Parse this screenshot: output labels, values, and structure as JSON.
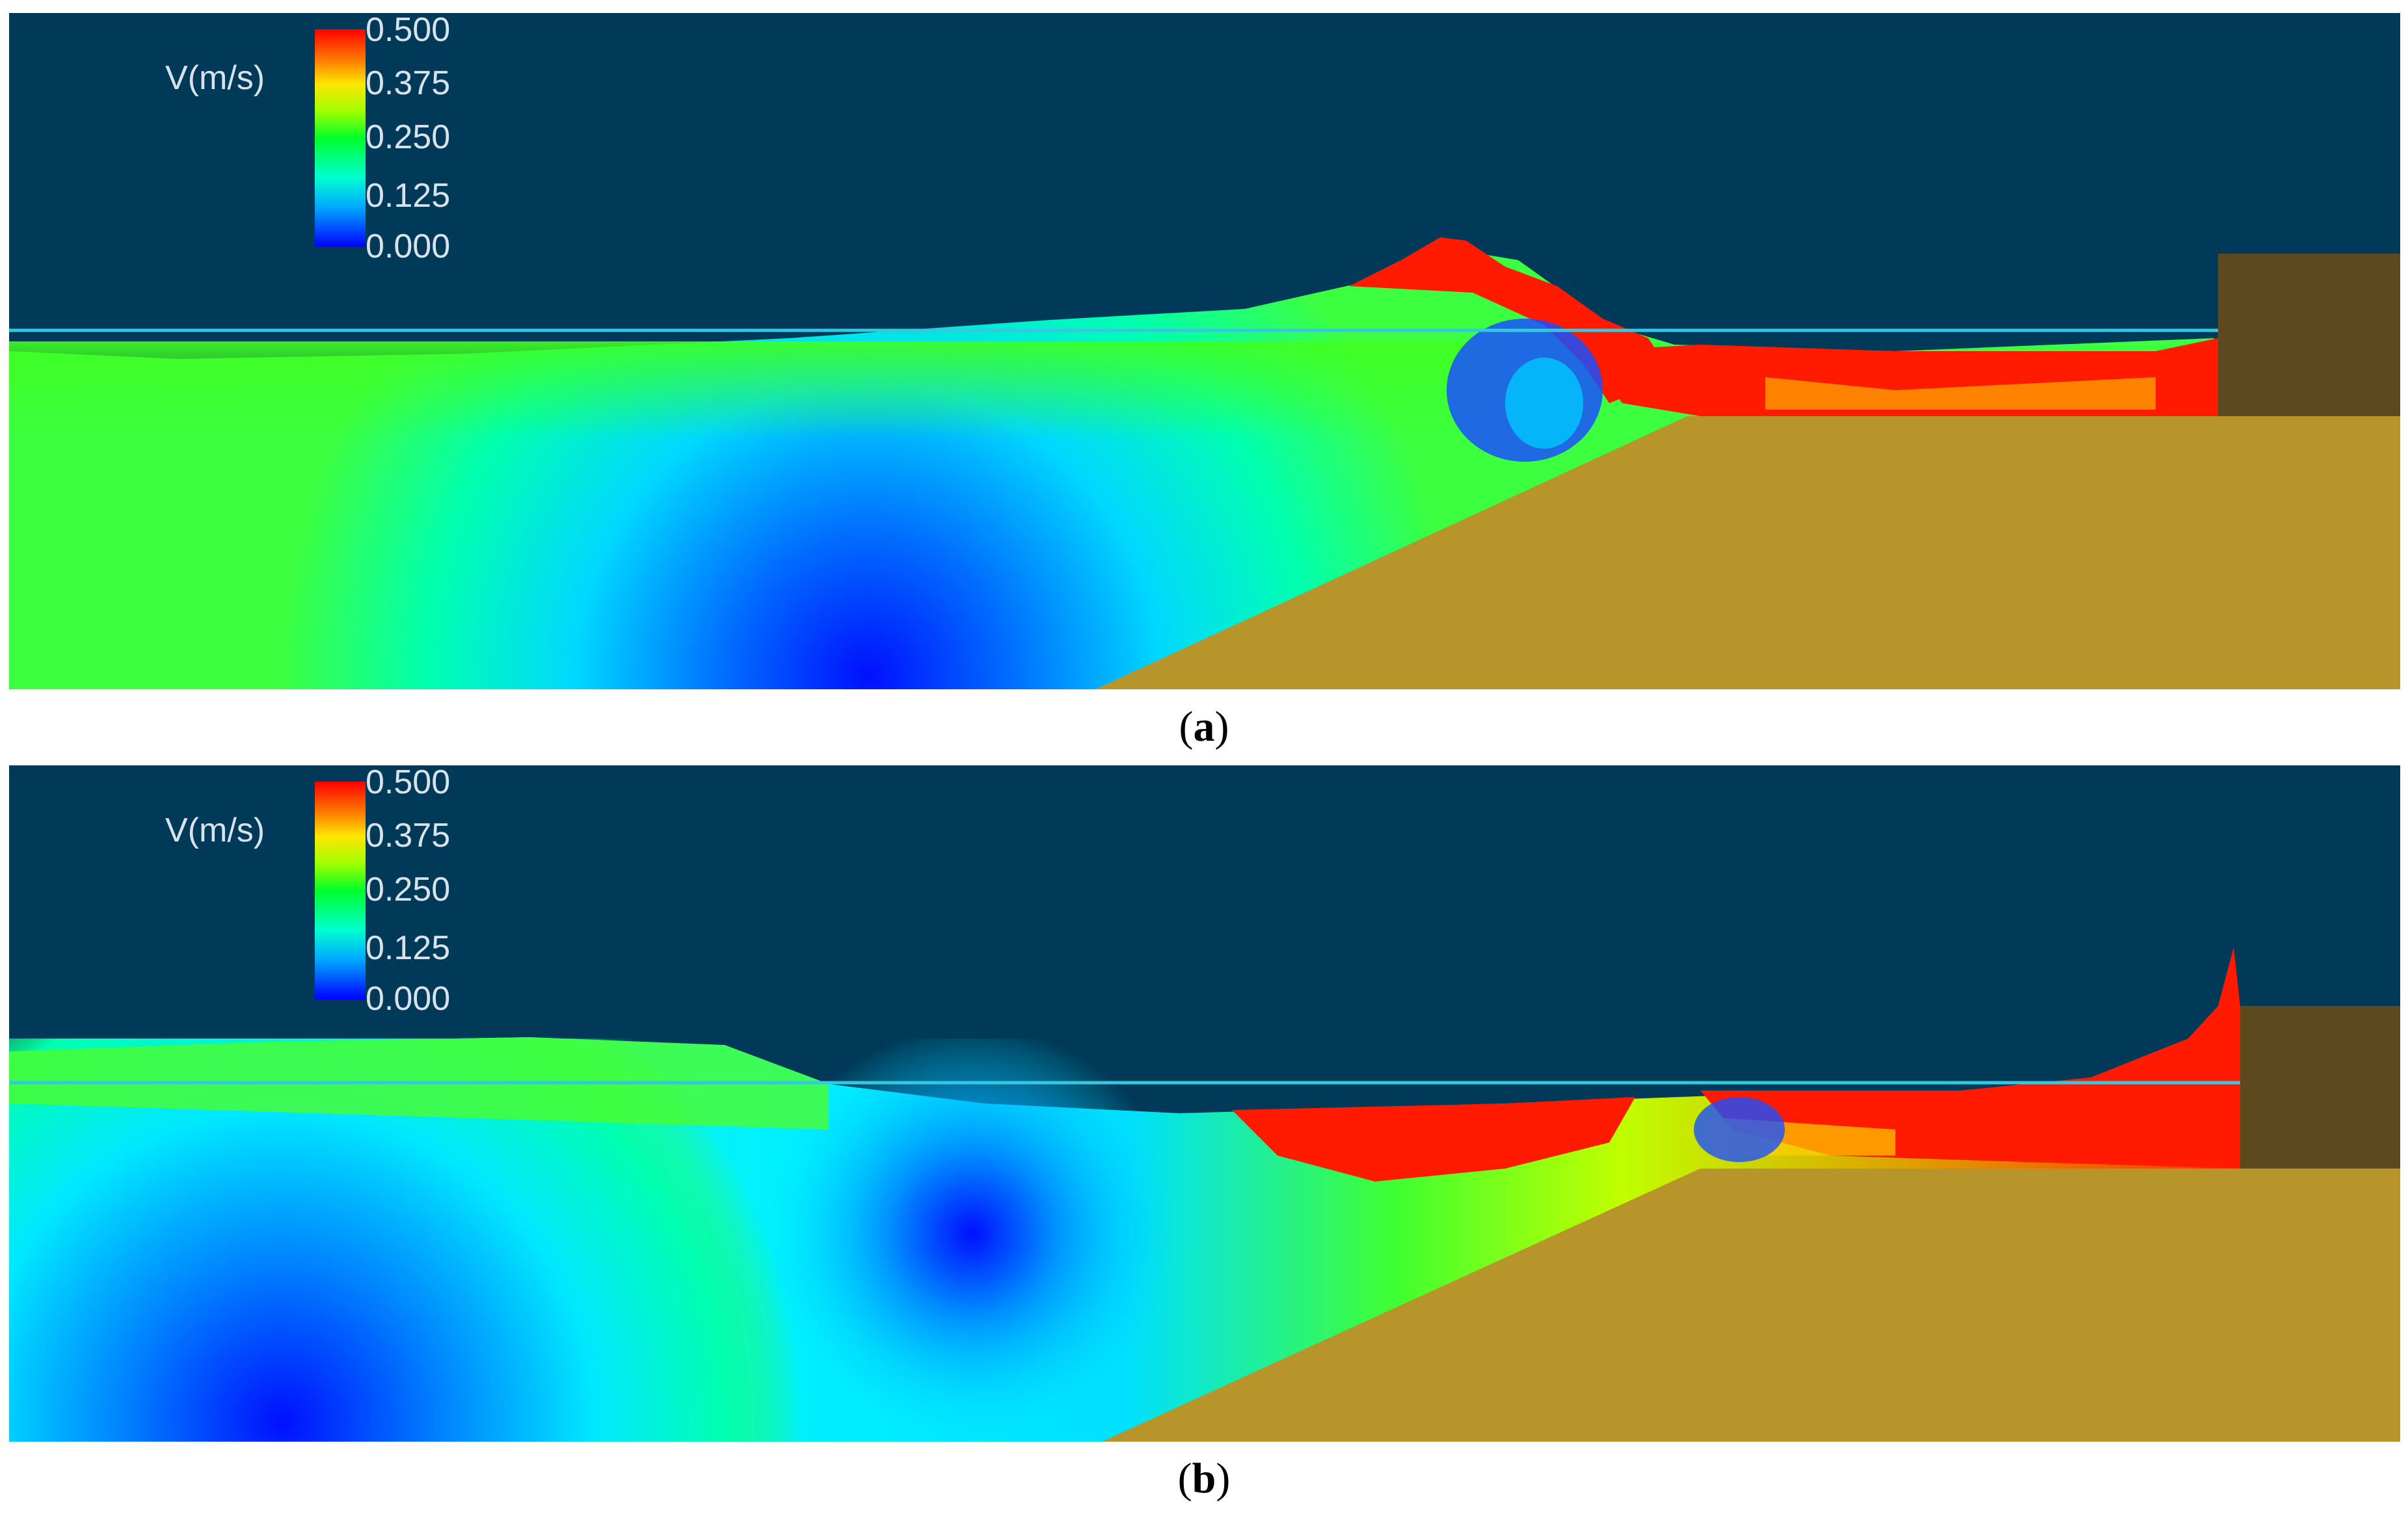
{
  "legend": {
    "title": "V(m/s)",
    "ticks": [
      "0.500",
      "0.375",
      "0.250",
      "0.125",
      "0.000"
    ],
    "colors": [
      "#ff0000",
      "#ffe600",
      "#00ff2a",
      "#00ffd0",
      "#0000ff"
    ]
  },
  "panels": [
    {
      "label": "a",
      "caption_open": "(",
      "caption_close": ")"
    },
    {
      "label": "b",
      "caption_open": "(",
      "caption_close": ")"
    }
  ],
  "colors": {
    "background": "#003a58",
    "sediment": "#b8952a",
    "wall": "#5c4a1e",
    "still_water_line": "#36c8e0"
  }
}
